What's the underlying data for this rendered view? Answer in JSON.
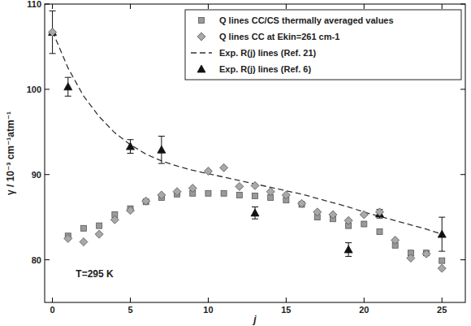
{
  "chart_data": {
    "type": "scatter",
    "x_label": "j",
    "y_label": "γ / 10⁻³ cm⁻¹atm⁻¹",
    "annotation": "T=295 K",
    "xlim": [
      -0.5,
      26.5
    ],
    "ylim": [
      75,
      110
    ],
    "xticks": [
      0,
      5,
      10,
      15,
      20,
      25
    ],
    "yticks": [
      80,
      90,
      100,
      110
    ],
    "legend": "top-right",
    "series": [
      {
        "name": "Q lines CC/CS thermally averaged values",
        "type": "scatter",
        "marker": "square",
        "color": "#9a9a9a",
        "x": [
          1,
          2,
          3,
          4,
          5,
          6,
          7,
          8,
          9,
          10,
          11,
          12,
          13,
          14,
          15,
          16,
          17,
          18,
          19,
          20,
          21,
          22,
          23,
          24,
          25
        ],
        "values": [
          82.8,
          83.7,
          84.0,
          85.3,
          86.0,
          86.8,
          87.3,
          87.7,
          87.8,
          87.8,
          87.8,
          87.6,
          87.5,
          87.3,
          87.0,
          86.5,
          85.0,
          84.8,
          84.0,
          84.2,
          83.3,
          81.7,
          80.8,
          80.8,
          79.9
        ]
      },
      {
        "name": "Q lines CC at Ekin=261 cm-1",
        "type": "scatter",
        "marker": "diamond",
        "color": "#a8a8a8",
        "x": [
          0,
          1,
          2,
          3,
          4,
          5,
          6,
          7,
          8,
          9,
          10,
          11,
          12,
          13,
          14,
          15,
          16,
          17,
          18,
          19,
          20,
          21,
          22,
          23,
          24,
          25
        ],
        "values": [
          106.7,
          82.5,
          82.1,
          83.0,
          84.7,
          85.8,
          86.9,
          87.6,
          88.0,
          88.4,
          90.4,
          90.8,
          88.6,
          88.7,
          88.0,
          87.6,
          86.6,
          85.6,
          85.3,
          84.6,
          85.3,
          85.6,
          82.3,
          80.2,
          80.7,
          79.0
        ]
      },
      {
        "name": "Exp. R(j) lines (Ref. 21)",
        "type": "line",
        "line_style": "dashed",
        "color": "#333333",
        "x": [
          0,
          1,
          2,
          3,
          4,
          5,
          6,
          7,
          8,
          9,
          10,
          11,
          12,
          13,
          14,
          15,
          16,
          17,
          18,
          19,
          20,
          21,
          22,
          23,
          24,
          25
        ],
        "values": [
          106.8,
          102.5,
          99.2,
          96.8,
          94.9,
          93.5,
          92.4,
          91.6,
          91.0,
          90.5,
          90.1,
          89.7,
          89.3,
          88.9,
          88.5,
          88.1,
          87.7,
          87.2,
          86.7,
          86.2,
          85.6,
          85.1,
          84.6,
          84.1,
          83.6,
          83.0
        ]
      },
      {
        "name": "Exp. R(j) lines (Ref. 6)",
        "type": "scatter",
        "marker": "triangle",
        "color": "#111111",
        "x": [
          0,
          1,
          5,
          7,
          13,
          19,
          21,
          25
        ],
        "values": [
          106.7,
          100.3,
          93.3,
          92.9,
          85.5,
          81.2,
          85.4,
          83.0
        ],
        "errors": [
          2.5,
          1.1,
          0.8,
          1.6,
          0.7,
          0.8,
          0.5,
          2.0
        ]
      }
    ]
  }
}
